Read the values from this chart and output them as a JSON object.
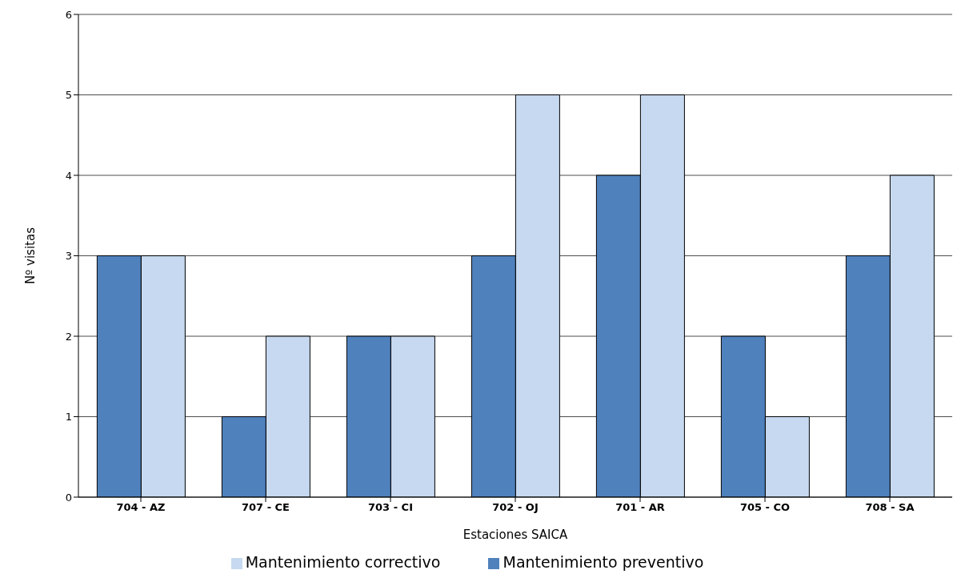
{
  "chart_data": {
    "type": "bar",
    "xlabel": "Estaciones SAICA",
    "ylabel": "Nº visitas",
    "categories": [
      "704 - AZ",
      "707 - CE",
      "703 - CI",
      "702 - OJ",
      "701 - AR",
      "705 - CO",
      "708 - SA"
    ],
    "series": [
      {
        "name": "Mantenimiento preventivo",
        "color": "#4f81bd",
        "values": [
          3,
          1,
          2,
          3,
          4,
          2,
          3
        ]
      },
      {
        "name": "Mantenimiento correctivo",
        "color": "#c6d9f0",
        "values": [
          3,
          2,
          2,
          5,
          5,
          1,
          4
        ]
      }
    ],
    "ylim": [
      0,
      6
    ],
    "yticks": [
      0,
      1,
      2,
      3,
      4,
      5,
      6
    ],
    "grid": "y",
    "legend": "bottom"
  }
}
